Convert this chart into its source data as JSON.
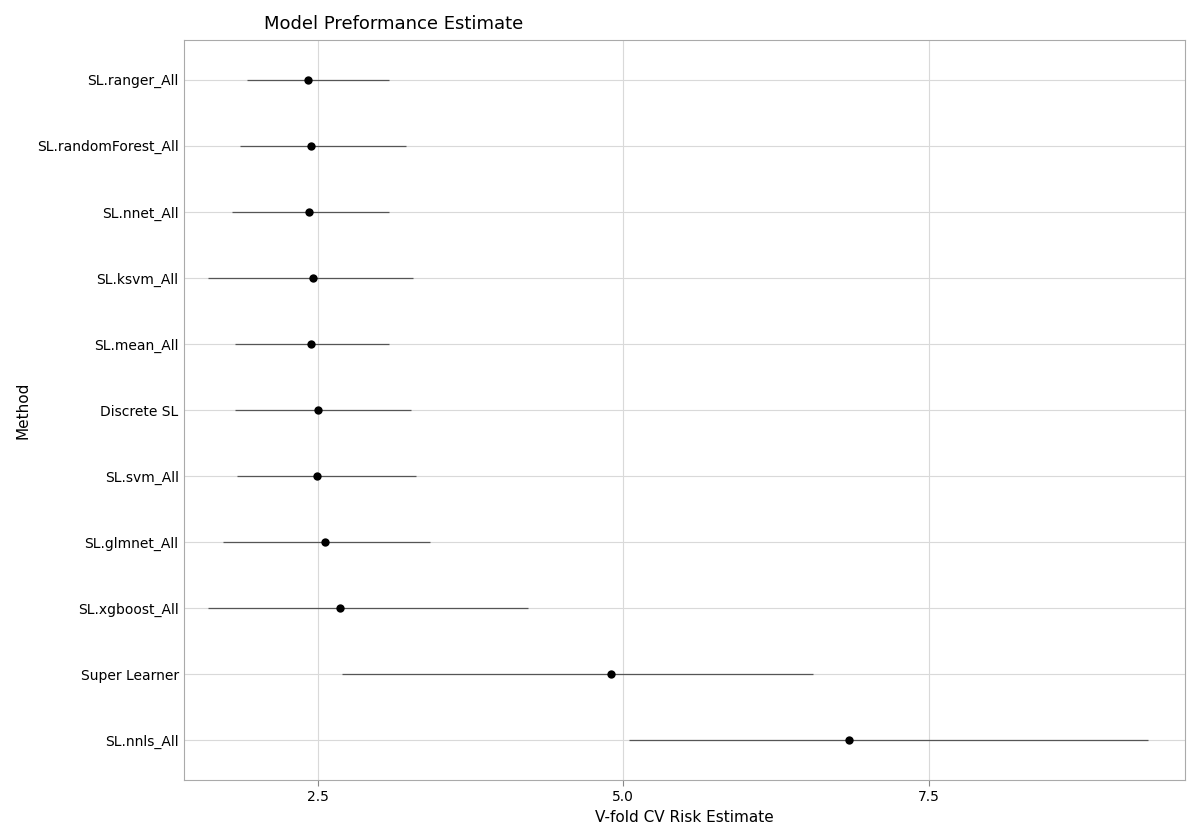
{
  "title": "Model Preformance Estimate",
  "xlabel": "V-fold CV Risk Estimate",
  "ylabel": "Method",
  "methods": [
    "SL.ranger_All",
    "SL.randomForest_All",
    "SL.nnet_All",
    "SL.ksvm_All",
    "SL.mean_All",
    "Discrete SL",
    "SL.svm_All",
    "SL.glmnet_All",
    "SL.xgboost_All",
    "Super Learner",
    "SL.nnls_All"
  ],
  "centers": [
    2.42,
    2.44,
    2.43,
    2.46,
    2.44,
    2.5,
    2.49,
    2.56,
    2.68,
    4.9,
    6.85
  ],
  "ci_low": [
    1.92,
    1.86,
    1.8,
    1.6,
    1.82,
    1.82,
    1.84,
    1.72,
    1.6,
    2.7,
    5.05
  ],
  "ci_high": [
    3.08,
    3.22,
    3.08,
    3.28,
    3.08,
    3.26,
    3.3,
    3.42,
    4.22,
    6.55,
    9.3
  ],
  "xlim": [
    1.4,
    9.6
  ],
  "xticks": [
    2.5,
    5.0,
    7.5
  ],
  "point_color": "#000000",
  "line_color": "#555555",
  "grid_color": "#d9d9d9",
  "bg_color": "#ffffff",
  "panel_border_color": "#aaaaaa",
  "title_fontsize": 13,
  "label_fontsize": 11,
  "tick_fontsize": 10,
  "marker_size": 6
}
